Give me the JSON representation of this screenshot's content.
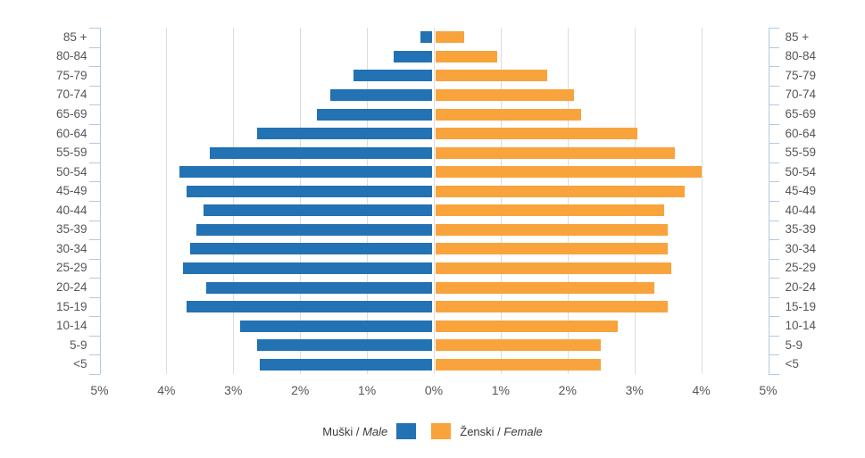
{
  "chart_data": {
    "type": "bar",
    "subtype": "population-pyramid",
    "title": "",
    "categories": [
      "85 +",
      "80-84",
      "75-79",
      "70-74",
      "65-69",
      "60-64",
      "55-59",
      "50-54",
      "45-49",
      "40-44",
      "35-39",
      "30-34",
      "25-29",
      "20-24",
      "15-19",
      "10-14",
      "5-9",
      "<5"
    ],
    "series": [
      {
        "name": "Muški / Male",
        "side": "left",
        "color": "#2272B4",
        "values": [
          0.2,
          0.6,
          1.2,
          1.55,
          1.75,
          2.65,
          3.35,
          3.8,
          3.7,
          3.45,
          3.55,
          3.65,
          3.75,
          3.4,
          3.7,
          2.9,
          2.65,
          2.6
        ]
      },
      {
        "name": "Ženski / Female",
        "side": "right",
        "color": "#F9A33C",
        "values": [
          0.45,
          0.95,
          1.7,
          2.1,
          2.2,
          3.05,
          3.6,
          4.0,
          3.75,
          3.45,
          3.5,
          3.5,
          3.55,
          3.3,
          3.5,
          2.75,
          2.5,
          2.5
        ]
      }
    ],
    "x_tick_labels": [
      "5%",
      "4%",
      "3%",
      "2%",
      "1%",
      "0%",
      "1%",
      "2%",
      "3%",
      "4%",
      "5%"
    ],
    "x_unit": "%",
    "x_max_each_side": 5,
    "grid": true,
    "legend_position": "bottom",
    "ylabel": "",
    "xlabel": ""
  },
  "legend": {
    "male_prefix": "Muški / ",
    "male_italic": "Male",
    "female_prefix": "Ženski / ",
    "female_italic": "Female"
  },
  "colors": {
    "male": "#2272B4",
    "female": "#F9A33C",
    "axis": "#AFCBE3",
    "grid": "#DCDCDC",
    "text": "#55565A"
  }
}
